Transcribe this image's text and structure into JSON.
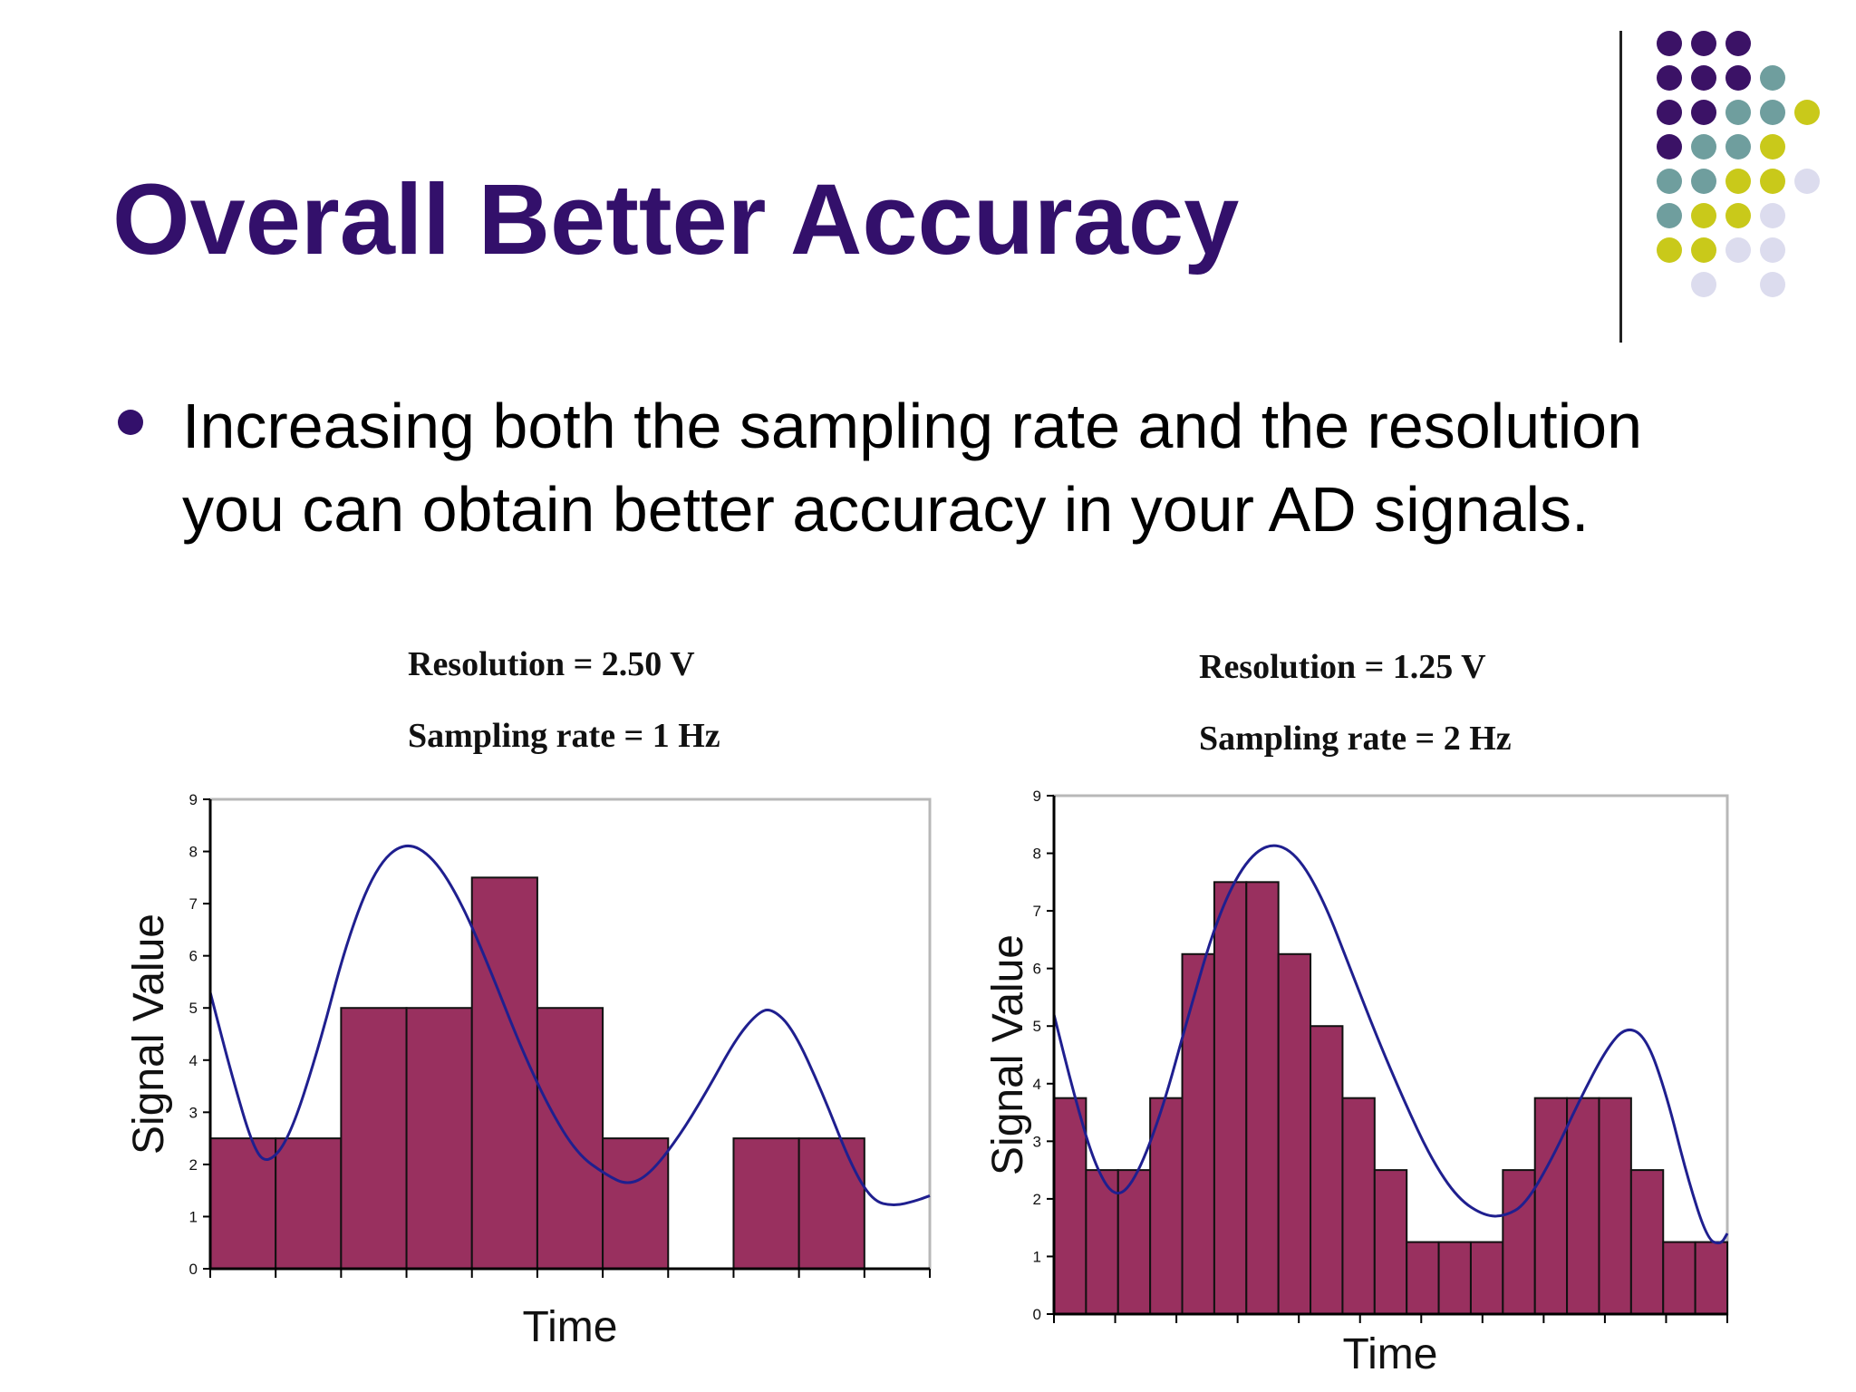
{
  "slide": {
    "title": "Overall Better Accuracy",
    "bullet_line1": "Increasing both the sampling rate and the resolution",
    "bullet_line2": "you can obtain better accuracy in your AD signals."
  },
  "colors": {
    "title": "#33106b",
    "bullet": "#33106b",
    "bar_fill": "#99305f",
    "bar_stroke": "#111111",
    "curve": "#1f1f8f",
    "dot_purple": "#3b1266",
    "dot_teal": "#6f9e9e",
    "dot_yellow": "#c9c91a",
    "dot_lavender": "#dcdcee"
  },
  "decoration": {
    "dot_grid": [
      [
        "purple",
        "purple",
        "purple",
        "",
        "",
        ""
      ],
      [
        "purple",
        "purple",
        "purple",
        "teal",
        "",
        ""
      ],
      [
        "purple",
        "purple",
        "teal",
        "teal",
        "yellow",
        ""
      ],
      [
        "purple",
        "teal",
        "teal",
        "yellow",
        "",
        ""
      ],
      [
        "teal",
        "teal",
        "yellow",
        "yellow",
        "lavender",
        ""
      ],
      [
        "teal",
        "yellow",
        "yellow",
        "lavender",
        "",
        ""
      ],
      [
        "yellow",
        "yellow",
        "lavender",
        "lavender",
        "",
        ""
      ],
      [
        "",
        "lavender",
        "",
        "lavender",
        "",
        ""
      ]
    ]
  },
  "chart_data": [
    {
      "type": "bar",
      "caption_line1": "Resolution = 2.50 V",
      "caption_line2": "Sampling rate = 1 Hz",
      "xlabel": "Time",
      "ylabel": "Signal Value",
      "ylim": [
        0,
        9
      ],
      "yticks": [
        "0",
        "1",
        "2",
        "3",
        "4",
        "5",
        "6",
        "7",
        "8",
        "9"
      ],
      "x_ticks_count": 11,
      "bar_slots": 11,
      "values": [
        2.5,
        2.5,
        5,
        5,
        7.5,
        5,
        2.5,
        0,
        2.5,
        2.5,
        0
      ],
      "curve": [
        [
          0.0,
          5.3
        ],
        [
          0.3,
          3.7
        ],
        [
          0.6,
          2.3
        ],
        [
          0.8,
          2.0
        ],
        [
          1.1,
          2.5
        ],
        [
          1.5,
          4.2
        ],
        [
          1.9,
          6.3
        ],
        [
          2.3,
          7.7
        ],
        [
          2.7,
          8.2
        ],
        [
          3.1,
          7.9
        ],
        [
          3.5,
          7.0
        ],
        [
          3.9,
          5.7
        ],
        [
          4.3,
          4.3
        ],
        [
          4.7,
          3.1
        ],
        [
          5.1,
          2.2
        ],
        [
          5.5,
          1.8
        ],
        [
          5.8,
          1.6
        ],
        [
          6.1,
          1.8
        ],
        [
          6.5,
          2.5
        ],
        [
          6.9,
          3.4
        ],
        [
          7.3,
          4.4
        ],
        [
          7.6,
          4.9
        ],
        [
          7.8,
          5.0
        ],
        [
          8.1,
          4.6
        ],
        [
          8.5,
          3.4
        ],
        [
          8.9,
          2.0
        ],
        [
          9.2,
          1.3
        ],
        [
          9.5,
          1.2
        ],
        [
          9.8,
          1.3
        ],
        [
          10.0,
          1.4
        ]
      ],
      "grid": false
    },
    {
      "type": "bar",
      "caption_line1": "Resolution = 1.25 V",
      "caption_line2": "Sampling rate = 2 Hz",
      "xlabel": "Time",
      "ylabel": "Signal Value",
      "ylim": [
        0,
        9
      ],
      "yticks": [
        "0",
        "1",
        "2",
        "3",
        "4",
        "5",
        "6",
        "7",
        "8",
        "9"
      ],
      "x_ticks_count": 11,
      "bar_slots": 21,
      "values": [
        3.75,
        2.5,
        2.5,
        3.75,
        6.25,
        7.5,
        7.5,
        6.25,
        5,
        3.75,
        2.5,
        1.25,
        1.25,
        1.25,
        2.5,
        3.75,
        3.75,
        3.75,
        2.5,
        1.25,
        1.25
      ],
      "curve": [
        [
          0.0,
          5.2
        ],
        [
          0.3,
          3.8
        ],
        [
          0.6,
          2.6
        ],
        [
          0.9,
          2.0
        ],
        [
          1.2,
          2.3
        ],
        [
          1.6,
          3.5
        ],
        [
          2.0,
          5.2
        ],
        [
          2.4,
          6.8
        ],
        [
          2.8,
          7.8
        ],
        [
          3.2,
          8.2
        ],
        [
          3.6,
          8.0
        ],
        [
          4.0,
          7.2
        ],
        [
          4.4,
          6.0
        ],
        [
          4.8,
          4.8
        ],
        [
          5.2,
          3.7
        ],
        [
          5.6,
          2.7
        ],
        [
          6.0,
          2.0
        ],
        [
          6.4,
          1.7
        ],
        [
          6.7,
          1.7
        ],
        [
          7.0,
          1.9
        ],
        [
          7.4,
          2.7
        ],
        [
          7.8,
          3.7
        ],
        [
          8.2,
          4.6
        ],
        [
          8.5,
          5.0
        ],
        [
          8.8,
          4.8
        ],
        [
          9.1,
          3.8
        ],
        [
          9.4,
          2.4
        ],
        [
          9.7,
          1.3
        ],
        [
          9.9,
          1.2
        ],
        [
          10.0,
          1.4
        ]
      ],
      "grid": false
    }
  ]
}
